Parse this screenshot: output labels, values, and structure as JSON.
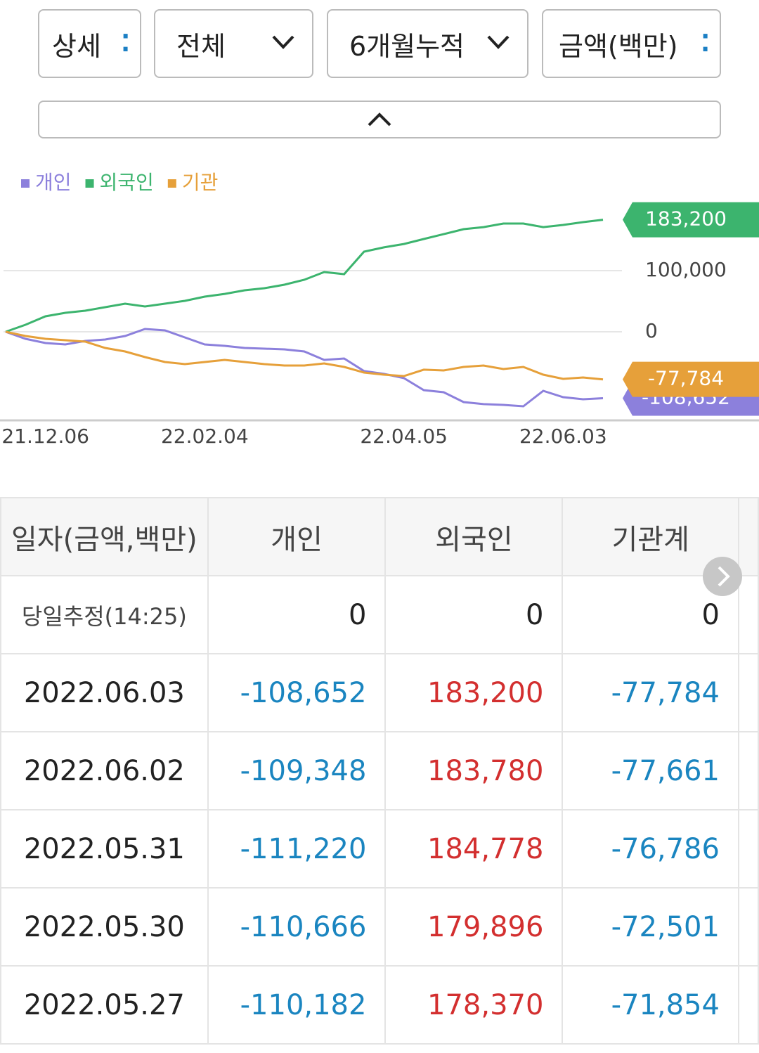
{
  "controls": {
    "detail": "상세",
    "scope": "전체",
    "period": "6개월누적",
    "unit": "금액(백만)"
  },
  "chart_data": {
    "type": "line",
    "categories": [
      null,
      null,
      "21.12.06",
      null,
      null,
      null,
      null,
      null,
      null,
      null,
      "22.02.04",
      null,
      null,
      null,
      null,
      null,
      null,
      null,
      null,
      null,
      "22.04.05",
      null,
      null,
      null,
      null,
      null,
      null,
      null,
      "22.06.03",
      null,
      null
    ],
    "series": [
      {
        "name": "개인",
        "color": "#8c80dc",
        "end_label": "-108,652",
        "values": [
          0,
          -11500,
          -18400,
          -20700,
          -14900,
          -12600,
          -6900,
          4600,
          2300,
          -9200,
          -20700,
          -23000,
          -26400,
          -27600,
          -28700,
          -32200,
          -46000,
          -43700,
          -64300,
          -68900,
          -75800,
          -95400,
          -98800,
          -114900,
          -118300,
          -119500,
          -121800,
          -96500,
          -106900,
          -110300,
          -108652
        ]
      },
      {
        "name": "외국인",
        "color": "#3cb46e",
        "end_label": "183,200",
        "values": [
          0,
          11500,
          25300,
          31000,
          34500,
          40200,
          46000,
          41400,
          46000,
          50600,
          57500,
          62000,
          67800,
          71300,
          77000,
          85000,
          97700,
          94200,
          131000,
          138000,
          143600,
          151700,
          159700,
          167800,
          171200,
          177000,
          177000,
          171200,
          174700,
          179300,
          183200
        ]
      },
      {
        "name": "기관",
        "color": "#e6a03a",
        "end_label": "-77,784",
        "values": [
          0,
          -6900,
          -11500,
          -13800,
          -16100,
          -26400,
          -32200,
          -41400,
          -49400,
          -52900,
          -49400,
          -46000,
          -49400,
          -52900,
          -55200,
          -55200,
          -51700,
          -57500,
          -66700,
          -70100,
          -72400,
          -62000,
          -63200,
          -57500,
          -55200,
          -60900,
          -57500,
          -70100,
          -77000,
          -74700,
          -77784
        ]
      }
    ],
    "ylim": [
      -140000,
      210000
    ],
    "yticks": [
      0,
      {
        "value": 100000,
        "label": "100,000"
      }
    ],
    "grid": true
  },
  "table": {
    "header": [
      "일자(금액,백만)",
      "개인",
      "외국인",
      "기관계"
    ],
    "rows": [
      [
        "당일추정(14:25)",
        "0",
        "0",
        "0"
      ],
      [
        "2022.06.03",
        "-108,652",
        "183,200",
        "-77,784"
      ],
      [
        "2022.06.02",
        "-109,348",
        "183,780",
        "-77,661"
      ],
      [
        "2022.05.31",
        "-111,220",
        "184,778",
        "-76,786"
      ],
      [
        "2022.05.30",
        "-110,666",
        "179,896",
        "-72,501"
      ],
      [
        "2022.05.27",
        "-110,182",
        "178,370",
        "-71,854"
      ]
    ]
  }
}
